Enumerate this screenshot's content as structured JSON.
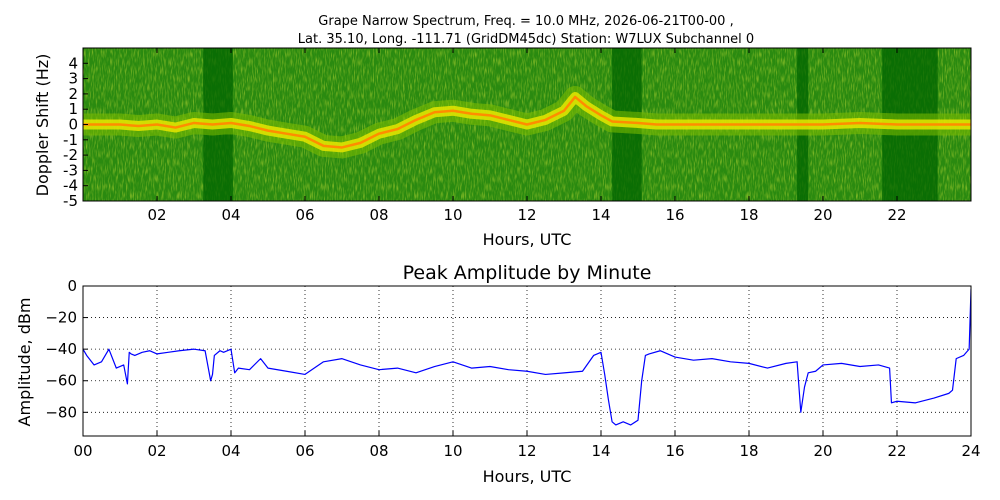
{
  "figure": {
    "spectrogram_title_line1": "Grape Narrow Spectrum, Freq. = 10.0 MHz, 2026-06-21T00-00 ,",
    "spectrogram_title_line2": "Lat.  35.10, Long. -111.71 (GridDM45dc) Station: W7LUX Subchannel 0"
  },
  "chart_data": [
    {
      "type": "heatmap",
      "title": "Grape Narrow Spectrum, Freq. = 10.0 MHz, 2026-06-21T00-00 , Lat.  35.10, Long. -111.71 (GridDM45dc) Station: W7LUX Subchannel 0",
      "xlabel": "Hours, UTC",
      "ylabel": "Doppler Shift (Hz)",
      "xlim": [
        0,
        24
      ],
      "ylim": [
        -5,
        5
      ],
      "x_ticks": [
        2,
        4,
        6,
        8,
        10,
        12,
        14,
        16,
        18,
        20,
        22
      ],
      "x_tick_labels": [
        "02",
        "04",
        "06",
        "08",
        "10",
        "12",
        "14",
        "16",
        "18",
        "20",
        "22"
      ],
      "y_ticks": [
        -5,
        -4,
        -3,
        -2,
        -1,
        0,
        1,
        2,
        3,
        4
      ],
      "y_tick_labels": [
        "-5",
        "-4",
        "-3",
        "-2",
        "-1",
        "0",
        "1",
        "2",
        "3",
        "4"
      ],
      "colormap": [
        "#006400",
        "#2e8b00",
        "#7fbf00",
        "#e6e600",
        "#ff8c00",
        "#ff0000"
      ],
      "doppler_trace_hz": [
        [
          0,
          0.0
        ],
        [
          0.5,
          0.0
        ],
        [
          1.0,
          0.0
        ],
        [
          1.5,
          -0.1
        ],
        [
          2.0,
          0.0
        ],
        [
          2.5,
          -0.2
        ],
        [
          3.0,
          0.1
        ],
        [
          3.5,
          0.0
        ],
        [
          4.0,
          0.1
        ],
        [
          4.5,
          -0.1
        ],
        [
          5.0,
          -0.4
        ],
        [
          5.5,
          -0.6
        ],
        [
          6.0,
          -0.8
        ],
        [
          6.5,
          -1.4
        ],
        [
          7.0,
          -1.5
        ],
        [
          7.5,
          -1.2
        ],
        [
          8.0,
          -0.6
        ],
        [
          8.5,
          -0.3
        ],
        [
          9.0,
          0.3
        ],
        [
          9.5,
          0.8
        ],
        [
          10.0,
          0.9
        ],
        [
          10.5,
          0.7
        ],
        [
          11.0,
          0.6
        ],
        [
          11.5,
          0.3
        ],
        [
          12.0,
          0.0
        ],
        [
          12.5,
          0.3
        ],
        [
          13.0,
          0.9
        ],
        [
          13.3,
          1.8
        ],
        [
          13.6,
          1.2
        ],
        [
          14.0,
          0.6
        ],
        [
          14.3,
          0.2
        ],
        [
          15.0,
          0.1
        ],
        [
          15.5,
          0.0
        ],
        [
          16.0,
          0.0
        ],
        [
          17.0,
          0.0
        ],
        [
          18.0,
          0.0
        ],
        [
          19.0,
          0.0
        ],
        [
          20.0,
          0.0
        ],
        [
          21.0,
          0.1
        ],
        [
          22.0,
          0.0
        ],
        [
          23.0,
          0.0
        ],
        [
          24.0,
          0.0
        ]
      ],
      "dark_bands_hours": [
        [
          3.25,
          4.05
        ],
        [
          14.3,
          15.1
        ],
        [
          19.3,
          19.6
        ],
        [
          21.6,
          23.1
        ]
      ]
    },
    {
      "type": "line",
      "title": "Peak Amplitude by Minute",
      "xlabel": "Hours, UTC",
      "ylabel": "Amplitude, dBm",
      "xlim": [
        0,
        24
      ],
      "ylim": [
        -95,
        0
      ],
      "x_ticks": [
        0,
        2,
        4,
        6,
        8,
        10,
        12,
        14,
        16,
        18,
        20,
        22,
        24
      ],
      "x_tick_labels": [
        "00",
        "02",
        "04",
        "06",
        "08",
        "10",
        "12",
        "14",
        "16",
        "18",
        "20",
        "22",
        "24"
      ],
      "y_ticks": [
        0,
        -20,
        -40,
        -60,
        -80
      ],
      "y_tick_labels": [
        "0",
        "−20",
        "−40",
        "−60",
        "−80"
      ],
      "grid": true,
      "line_color": "#0000ff",
      "series": [
        {
          "x": [
            0.0,
            0.1,
            0.3,
            0.5,
            0.7,
            0.9,
            1.1,
            1.2,
            1.25,
            1.3,
            1.4,
            1.6,
            1.8,
            2.0,
            2.3,
            2.6,
            3.0,
            3.3,
            3.45,
            3.5,
            3.55,
            3.7,
            3.8,
            4.0,
            4.1,
            4.2,
            4.5,
            4.8,
            5.0,
            5.5,
            6.0,
            6.5,
            7.0,
            7.5,
            8.0,
            8.5,
            9.0,
            9.5,
            10.0,
            10.5,
            11.0,
            11.5,
            12.0,
            12.5,
            13.0,
            13.5,
            13.8,
            14.0,
            14.1,
            14.2,
            14.3,
            14.4,
            14.6,
            14.8,
            15.0,
            15.1,
            15.2,
            15.3,
            15.6,
            16.0,
            16.5,
            17.0,
            17.5,
            18.0,
            18.5,
            19.0,
            19.3,
            19.4,
            19.5,
            19.6,
            19.8,
            20.0,
            20.5,
            21.0,
            21.5,
            21.8,
            21.85,
            22.0,
            22.5,
            23.0,
            23.4,
            23.5,
            23.6,
            23.8,
            23.95,
            24.0
          ],
          "values": [
            -40,
            -44,
            -50,
            -48,
            -40,
            -52,
            -50,
            -62,
            -42,
            -43,
            -44,
            -42,
            -41,
            -43,
            -42,
            -41,
            -40,
            -41,
            -60,
            -56,
            -44,
            -41,
            -42,
            -40,
            -55,
            -52,
            -53,
            -46,
            -52,
            -54,
            -56,
            -48,
            -46,
            -50,
            -53,
            -52,
            -55,
            -51,
            -48,
            -52,
            -51,
            -53,
            -54,
            -56,
            -55,
            -54,
            -44,
            -42,
            -56,
            -72,
            -86,
            -88,
            -86,
            -88,
            -85,
            -60,
            -44,
            -43,
            -41,
            -45,
            -47,
            -46,
            -48,
            -49,
            -52,
            -49,
            -48,
            -80,
            -64,
            -55,
            -54,
            -50,
            -49,
            -51,
            -50,
            -52,
            -74,
            -73,
            -74,
            -71,
            -68,
            -66,
            -46,
            -44,
            -40,
            -2
          ]
        }
      ]
    }
  ]
}
